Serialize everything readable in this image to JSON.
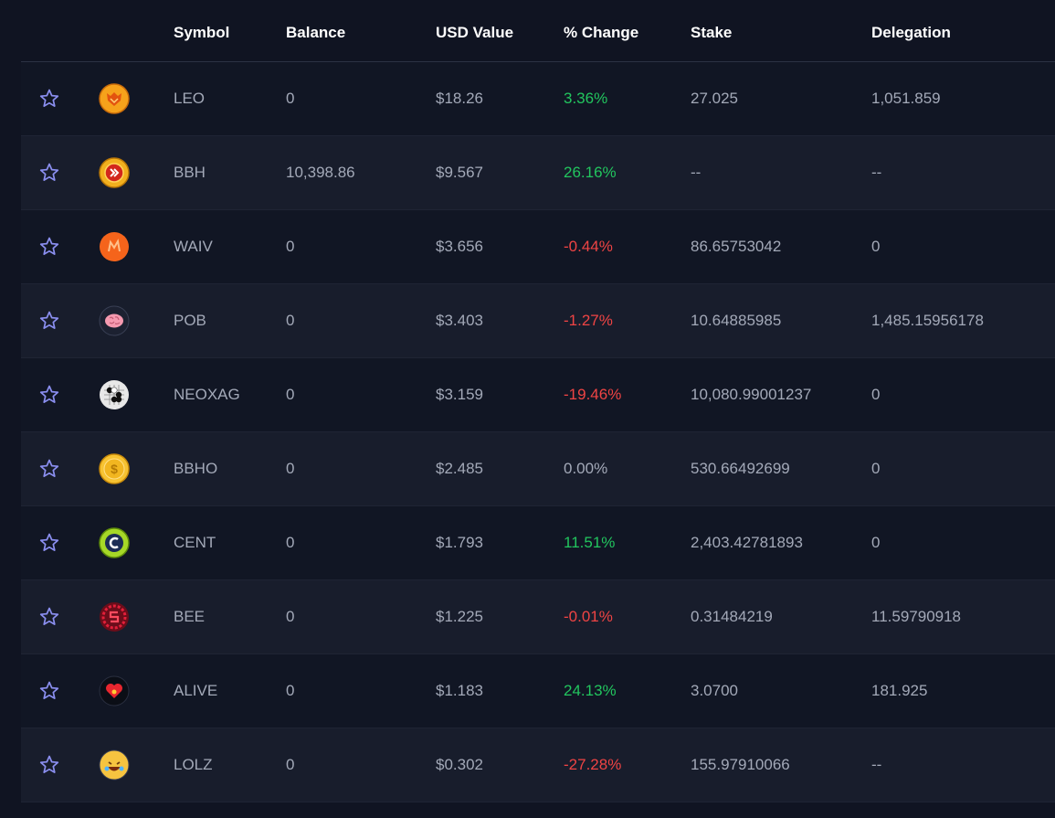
{
  "columns": {
    "symbol": "Symbol",
    "balance": "Balance",
    "usd_value": "USD Value",
    "change": "% Change",
    "stake": "Stake",
    "delegation": "Delegation"
  },
  "colors": {
    "background": "#101422",
    "row_alt": "#181d2c",
    "positive": "#22c55e",
    "negative": "#ef4444",
    "star": "#8b8ff0"
  },
  "tokens": [
    {
      "symbol": "LEO",
      "icon": "leo-lion-icon",
      "balance": "0",
      "usd": "$18.26",
      "change": "3.36%",
      "trend": "pos",
      "stake": "27.025",
      "delegation": "1,051.859"
    },
    {
      "symbol": "BBH",
      "icon": "bbh-coin-icon",
      "balance": "10,398.86",
      "usd": "$9.567",
      "change": "26.16%",
      "trend": "pos",
      "stake": "--",
      "delegation": "--"
    },
    {
      "symbol": "WAIV",
      "icon": "waiv-icon",
      "balance": "0",
      "usd": "$3.656",
      "change": "-0.44%",
      "trend": "neg",
      "stake": "86.65753042",
      "delegation": "0"
    },
    {
      "symbol": "POB",
      "icon": "brain-icon",
      "balance": "0",
      "usd": "$3.403",
      "change": "-1.27%",
      "trend": "neg",
      "stake": "10.64885985",
      "delegation": "1,485.15956178"
    },
    {
      "symbol": "NEOXAG",
      "icon": "go-board-icon",
      "balance": "0",
      "usd": "$3.159",
      "change": "-19.46%",
      "trend": "neg",
      "stake": "10,080.99001237",
      "delegation": "0"
    },
    {
      "symbol": "BBHO",
      "icon": "gold-coin-icon",
      "balance": "0",
      "usd": "$2.485",
      "change": "0.00%",
      "trend": "neu",
      "stake": "530.66492699",
      "delegation": "0"
    },
    {
      "symbol": "CENT",
      "icon": "cent-icon",
      "balance": "0",
      "usd": "$1.793",
      "change": "11.51%",
      "trend": "pos",
      "stake": "2,403.42781893",
      "delegation": "0"
    },
    {
      "symbol": "BEE",
      "icon": "bee-splinterlands-icon",
      "balance": "0",
      "usd": "$1.225",
      "change": "-0.01%",
      "trend": "neg",
      "stake": "0.31484219",
      "delegation": "11.59790918"
    },
    {
      "symbol": "ALIVE",
      "icon": "heart-icon",
      "balance": "0",
      "usd": "$1.183",
      "change": "24.13%",
      "trend": "pos",
      "stake": "3.0700",
      "delegation": "181.925"
    },
    {
      "symbol": "LOLZ",
      "icon": "laughing-face-icon",
      "balance": "0",
      "usd": "$0.302",
      "change": "-27.28%",
      "trend": "neg",
      "stake": "155.97910066",
      "delegation": "--"
    }
  ]
}
